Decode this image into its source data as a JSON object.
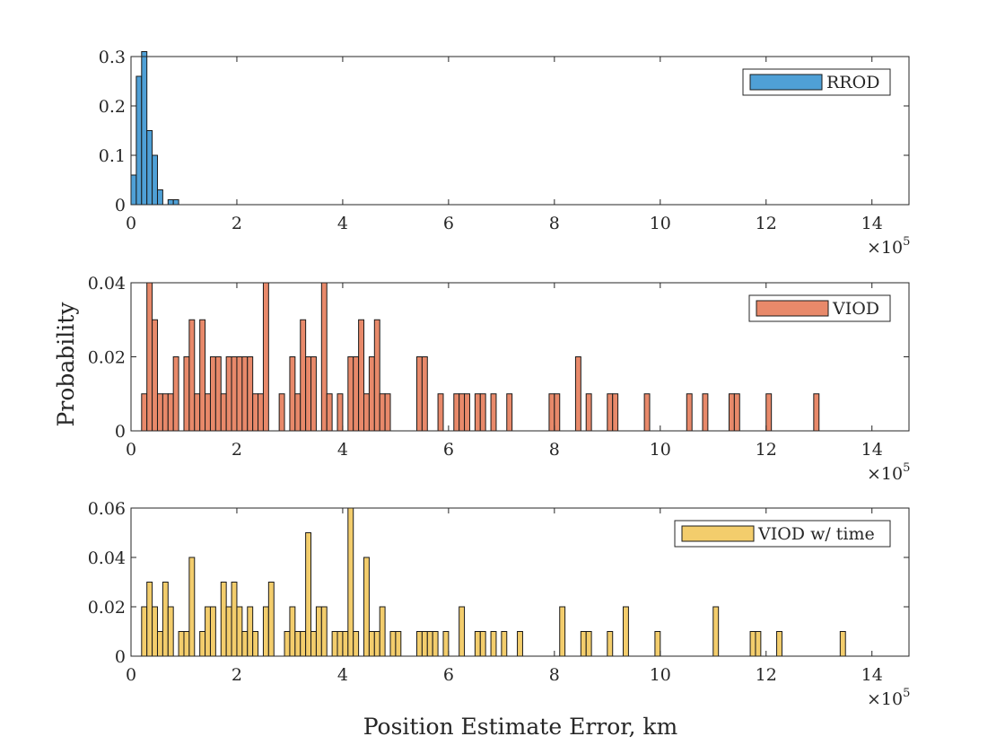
{
  "figure": {
    "ylabel": "Probability",
    "xlabel": "Position Estimate Error, km"
  },
  "chart_data": [
    {
      "type": "bar",
      "legend": "RROD",
      "legend_position": "top-right",
      "color": "#4fa0d6",
      "bin_width": 10000,
      "xlim": [
        0,
        1470000
      ],
      "ylim": [
        0,
        0.3
      ],
      "xticks": [
        0,
        200000,
        400000,
        600000,
        800000,
        1000000,
        1200000,
        1400000
      ],
      "xtick_labels": [
        "0",
        "2",
        "4",
        "6",
        "8",
        "10",
        "12",
        "14"
      ],
      "yticks": [
        0,
        0.1,
        0.2,
        0.3
      ],
      "ytick_labels": [
        "0",
        "0.1",
        "0.2",
        "0.3"
      ],
      "exponent": {
        "base": "×10",
        "power": "5"
      },
      "bins_start": [
        0,
        10000,
        20000,
        30000,
        40000,
        50000,
        60000,
        70000,
        80000
      ],
      "values": [
        0.06,
        0.26,
        0.31,
        0.15,
        0.1,
        0.03,
        0.0,
        0.01,
        0.01
      ]
    },
    {
      "type": "bar",
      "legend": "VIOD",
      "legend_position": "top-right",
      "color": "#e8896a",
      "bin_width": 10000,
      "xlim": [
        0,
        1470000
      ],
      "ylim": [
        0,
        0.04
      ],
      "xticks": [
        0,
        200000,
        400000,
        600000,
        800000,
        1000000,
        1200000,
        1400000
      ],
      "xtick_labels": [
        "0",
        "2",
        "4",
        "6",
        "8",
        "10",
        "12",
        "14"
      ],
      "yticks": [
        0,
        0.02,
        0.04
      ],
      "ytick_labels": [
        "0",
        "0.02",
        "0.04"
      ],
      "exponent": {
        "base": "×10",
        "power": "5"
      },
      "bins_start": [
        20000,
        30000,
        40000,
        50000,
        60000,
        70000,
        80000,
        100000,
        110000,
        120000,
        130000,
        140000,
        150000,
        160000,
        170000,
        180000,
        190000,
        200000,
        210000,
        220000,
        230000,
        240000,
        250000,
        280000,
        300000,
        310000,
        320000,
        330000,
        340000,
        360000,
        370000,
        390000,
        410000,
        420000,
        430000,
        440000,
        450000,
        460000,
        470000,
        480000,
        540000,
        550000,
        580000,
        610000,
        620000,
        630000,
        650000,
        660000,
        680000,
        710000,
        790000,
        800000,
        840000,
        860000,
        900000,
        910000,
        970000,
        1050000,
        1080000,
        1130000,
        1140000,
        1200000,
        1290000
      ],
      "values": [
        0.01,
        0.04,
        0.03,
        0.01,
        0.01,
        0.01,
        0.02,
        0.02,
        0.03,
        0.01,
        0.03,
        0.01,
        0.02,
        0.02,
        0.01,
        0.02,
        0.02,
        0.02,
        0.02,
        0.02,
        0.01,
        0.01,
        0.04,
        0.01,
        0.02,
        0.01,
        0.03,
        0.02,
        0.02,
        0.04,
        0.01,
        0.01,
        0.02,
        0.02,
        0.03,
        0.01,
        0.02,
        0.03,
        0.01,
        0.01,
        0.02,
        0.02,
        0.01,
        0.01,
        0.01,
        0.01,
        0.01,
        0.01,
        0.01,
        0.01,
        0.01,
        0.01,
        0.02,
        0.01,
        0.01,
        0.01,
        0.01,
        0.01,
        0.01,
        0.01,
        0.01,
        0.01,
        0.01
      ]
    },
    {
      "type": "bar",
      "legend": "VIOD w/ time",
      "legend_position": "top-right",
      "color": "#f3cd6c",
      "bin_width": 10000,
      "xlim": [
        0,
        1470000
      ],
      "ylim": [
        0,
        0.06
      ],
      "xticks": [
        0,
        200000,
        400000,
        600000,
        800000,
        1000000,
        1200000,
        1400000
      ],
      "xtick_labels": [
        "0",
        "2",
        "4",
        "6",
        "8",
        "10",
        "12",
        "14"
      ],
      "yticks": [
        0,
        0.02,
        0.04,
        0.06
      ],
      "ytick_labels": [
        "0",
        "0.02",
        "0.04",
        "0.06"
      ],
      "exponent": {
        "base": "×10",
        "power": "5"
      },
      "bins_start": [
        20000,
        30000,
        40000,
        50000,
        60000,
        70000,
        90000,
        100000,
        110000,
        130000,
        140000,
        150000,
        170000,
        180000,
        190000,
        200000,
        210000,
        220000,
        230000,
        250000,
        260000,
        290000,
        300000,
        310000,
        320000,
        330000,
        340000,
        350000,
        360000,
        380000,
        390000,
        400000,
        410000,
        420000,
        440000,
        450000,
        460000,
        470000,
        490000,
        500000,
        540000,
        550000,
        560000,
        570000,
        590000,
        620000,
        650000,
        660000,
        680000,
        700000,
        730000,
        810000,
        850000,
        860000,
        900000,
        930000,
        990000,
        1100000,
        1170000,
        1180000,
        1220000,
        1340000
      ],
      "values": [
        0.02,
        0.03,
        0.02,
        0.01,
        0.03,
        0.02,
        0.01,
        0.01,
        0.04,
        0.01,
        0.02,
        0.02,
        0.03,
        0.02,
        0.03,
        0.02,
        0.01,
        0.02,
        0.01,
        0.02,
        0.03,
        0.01,
        0.02,
        0.01,
        0.01,
        0.05,
        0.01,
        0.02,
        0.02,
        0.01,
        0.01,
        0.01,
        0.06,
        0.01,
        0.04,
        0.01,
        0.01,
        0.02,
        0.01,
        0.01,
        0.01,
        0.01,
        0.01,
        0.01,
        0.01,
        0.02,
        0.01,
        0.01,
        0.01,
        0.01,
        0.01,
        0.02,
        0.01,
        0.01,
        0.01,
        0.02,
        0.01,
        0.02,
        0.01,
        0.01,
        0.01,
        0.01
      ]
    }
  ]
}
